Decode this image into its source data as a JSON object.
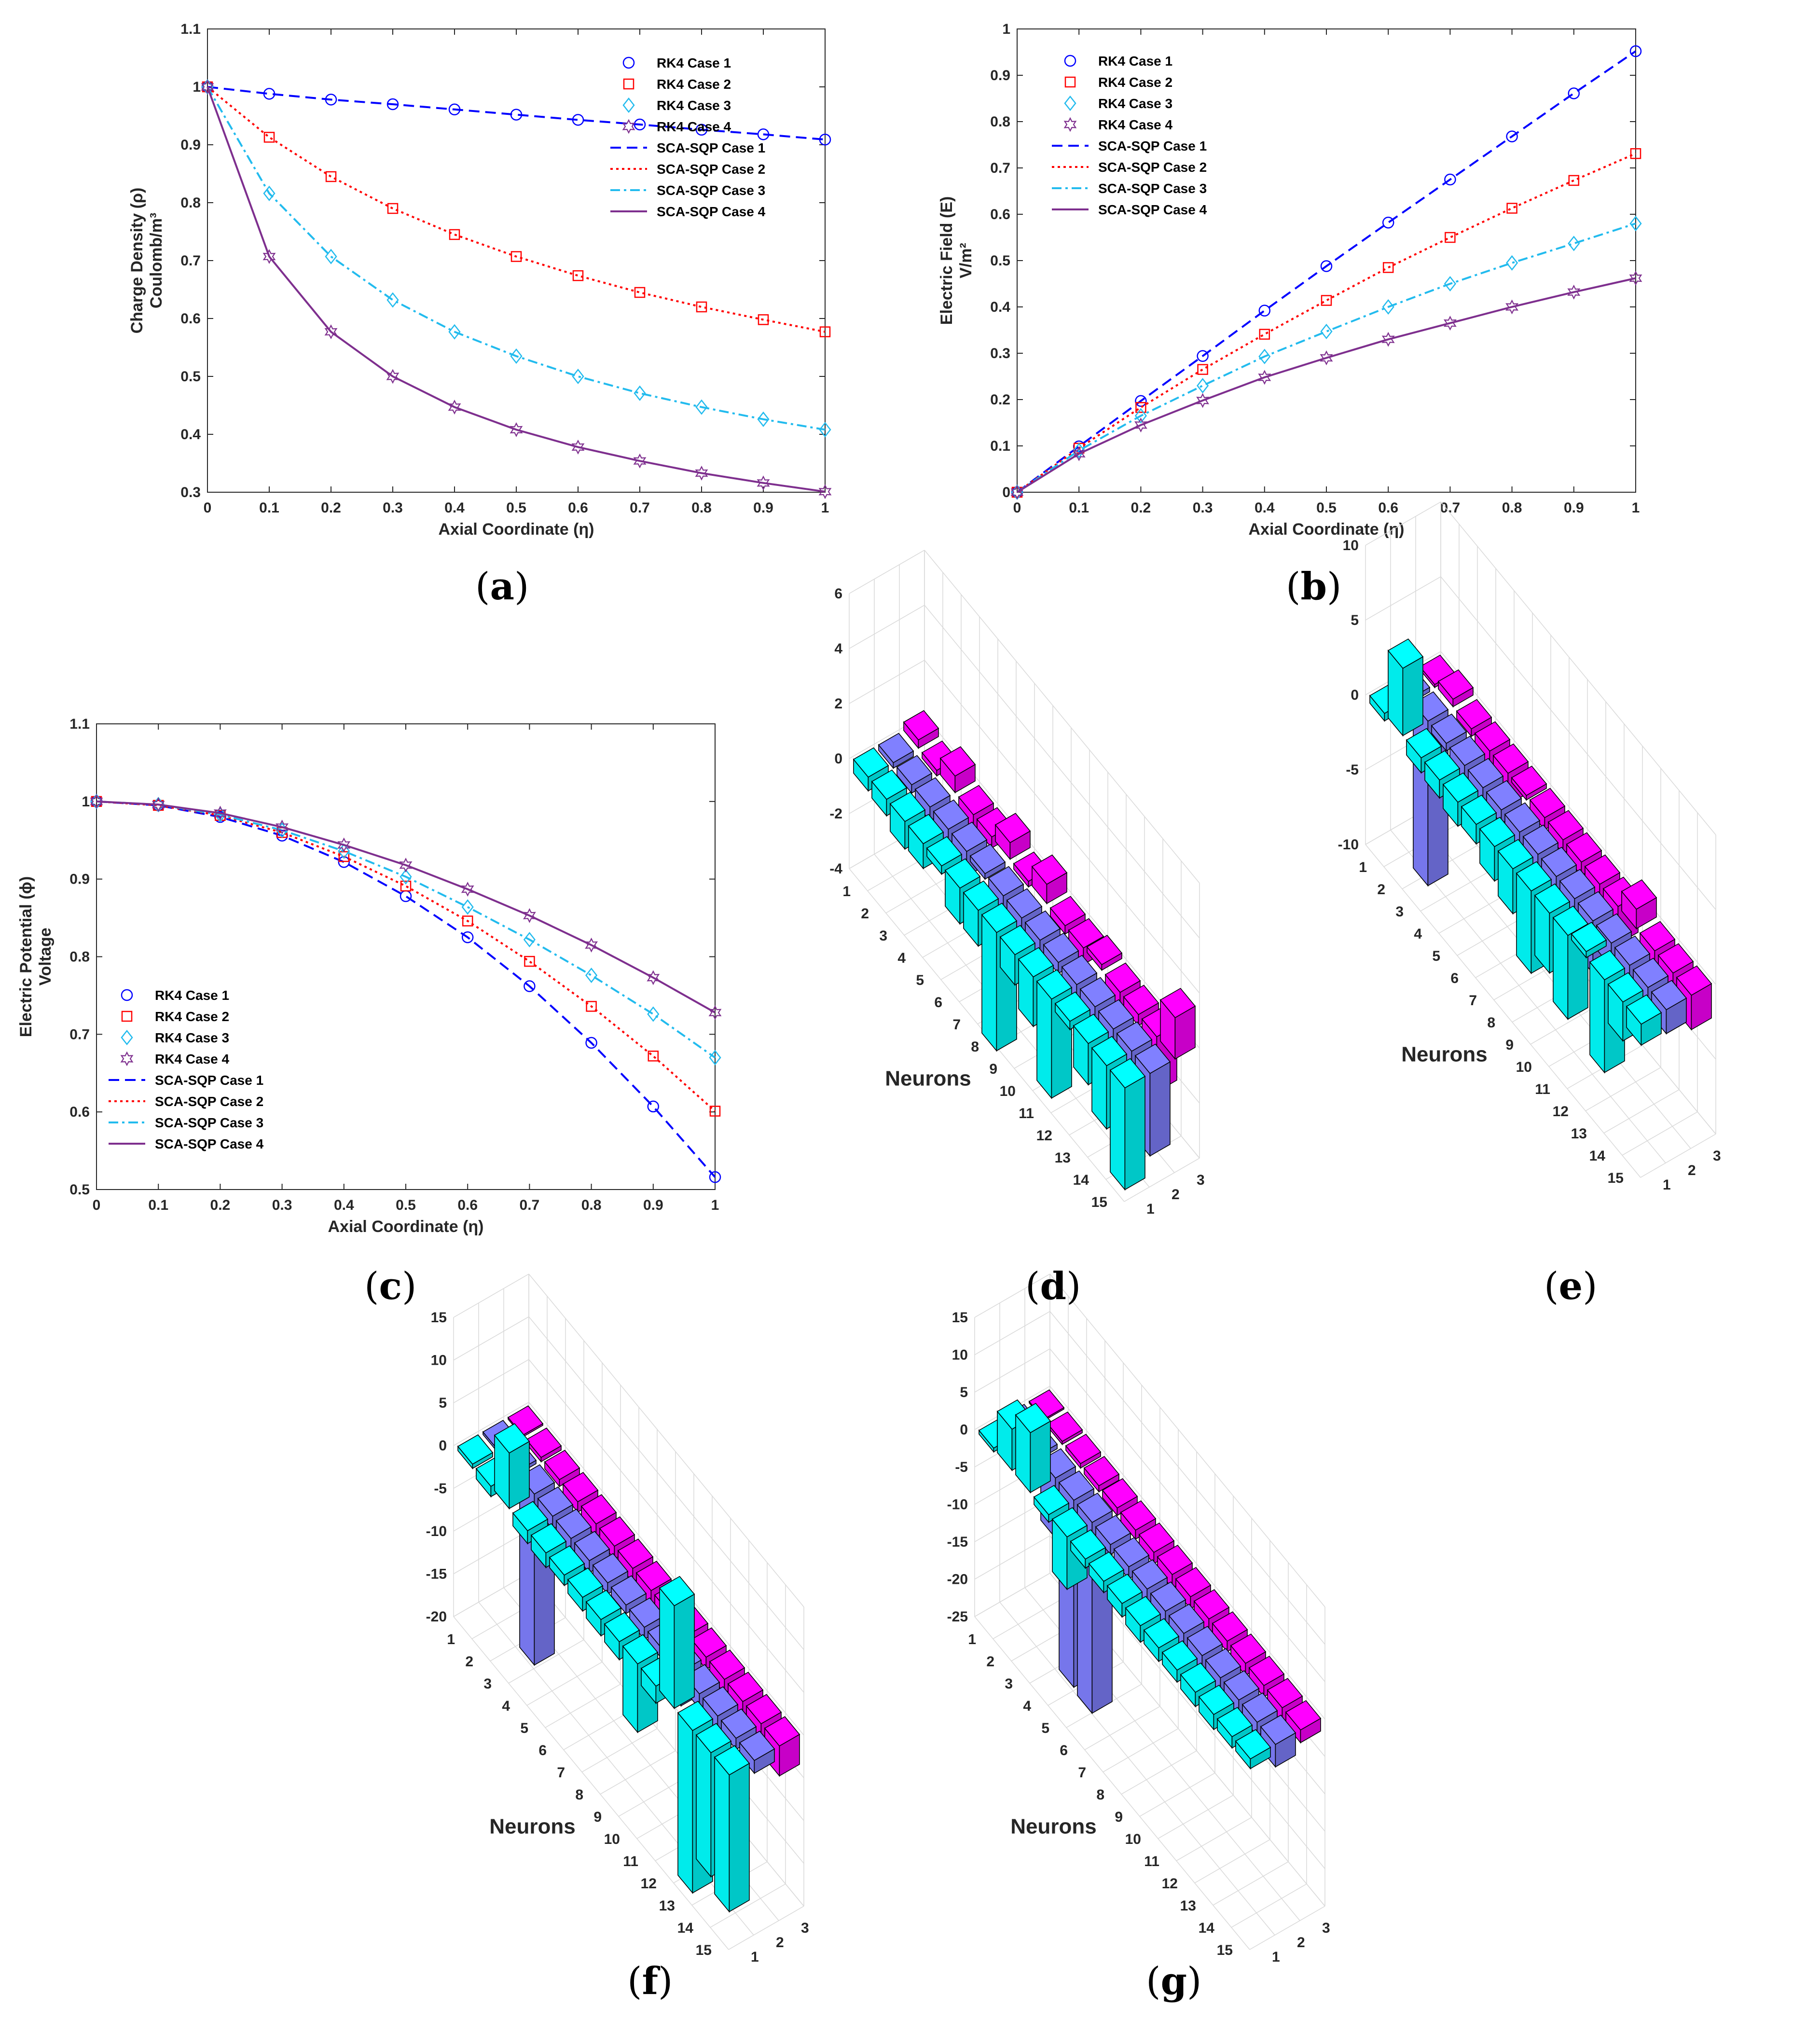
{
  "colors": {
    "case1": "#0000ff",
    "case2": "#ff0000",
    "case3": "#22bbee",
    "case4": "#7e2f8e",
    "bar_row1": "#00ffff",
    "bar_row2": "#8080ff",
    "bar_row3": "#ff00ff"
  },
  "legend_entries": [
    "RK4 Case 1",
    "RK4 Case 2",
    "RK4 Case 3",
    "RK4 Case 4",
    "SCA-SQP Case 1",
    "SCA-SQP Case 2",
    "SCA-SQP Case 3",
    "SCA-SQP Case 4"
  ],
  "captions": {
    "a": "a",
    "b": "b",
    "c": "c",
    "d": "d",
    "e": "e",
    "f": "f",
    "g": "g"
  },
  "chart_data": [
    {
      "id": "a",
      "type": "line",
      "xlabel": "Axial Coordinate (η)",
      "ylabel_line1": "Charge Density (ρ)",
      "ylabel_line2": "Coulomb/m³",
      "xlim": [
        0,
        1
      ],
      "ylim": [
        0.3,
        1.1
      ],
      "xticks": [
        0,
        0.1,
        0.2,
        0.3,
        0.4,
        0.5,
        0.6,
        0.7,
        0.8,
        0.9,
        1
      ],
      "yticks": [
        0.3,
        0.4,
        0.5,
        0.6,
        0.7,
        0.8,
        0.9,
        1,
        1.1
      ],
      "x": [
        0,
        0.1,
        0.2,
        0.3,
        0.4,
        0.5,
        0.6,
        0.7,
        0.8,
        0.9,
        1
      ],
      "legend_position": "top-right",
      "series": [
        {
          "name": "Case 1",
          "values": [
            1,
            0.988,
            0.978,
            0.97,
            0.961,
            0.952,
            0.943,
            0.935,
            0.926,
            0.918,
            0.909
          ]
        },
        {
          "name": "Case 2",
          "values": [
            1,
            0.913,
            0.845,
            0.79,
            0.745,
            0.707,
            0.674,
            0.645,
            0.62,
            0.598,
            0.577
          ]
        },
        {
          "name": "Case 3",
          "values": [
            1,
            0.816,
            0.707,
            0.632,
            0.577,
            0.535,
            0.5,
            0.471,
            0.447,
            0.426,
            0.408
          ]
        },
        {
          "name": "Case 4",
          "values": [
            1,
            0.707,
            0.577,
            0.5,
            0.447,
            0.408,
            0.378,
            0.354,
            0.333,
            0.316,
            0.301
          ]
        }
      ]
    },
    {
      "id": "b",
      "type": "line",
      "xlabel": "Axial Coordinate (η)",
      "ylabel_line1": "Electric Field (E)",
      "ylabel_line2": "V/m²",
      "xlim": [
        0,
        1
      ],
      "ylim": [
        0,
        1
      ],
      "xticks": [
        0,
        0.1,
        0.2,
        0.3,
        0.4,
        0.5,
        0.6,
        0.7,
        0.8,
        0.9,
        1
      ],
      "yticks": [
        0,
        0.1,
        0.2,
        0.3,
        0.4,
        0.5,
        0.6,
        0.7,
        0.8,
        0.9,
        1
      ],
      "x": [
        0,
        0.1,
        0.2,
        0.3,
        0.4,
        0.5,
        0.6,
        0.7,
        0.8,
        0.9,
        1
      ],
      "legend_position": "top-left",
      "series": [
        {
          "name": "Case 1",
          "values": [
            0,
            0.099,
            0.197,
            0.294,
            0.392,
            0.488,
            0.582,
            0.675,
            0.768,
            0.861,
            0.952
          ]
        },
        {
          "name": "Case 2",
          "values": [
            0,
            0.095,
            0.183,
            0.265,
            0.341,
            0.414,
            0.485,
            0.55,
            0.613,
            0.673,
            0.731
          ]
        },
        {
          "name": "Case 3",
          "values": [
            0,
            0.09,
            0.165,
            0.23,
            0.293,
            0.347,
            0.4,
            0.45,
            0.495,
            0.537,
            0.58
          ]
        },
        {
          "name": "Case 4",
          "values": [
            0,
            0.083,
            0.145,
            0.198,
            0.248,
            0.29,
            0.33,
            0.365,
            0.4,
            0.432,
            0.462
          ]
        }
      ]
    },
    {
      "id": "c",
      "type": "line",
      "xlabel": "Axial Coordinate (η)",
      "ylabel_line1": "Electric Potential (ϕ)",
      "ylabel_line2": "Voltage",
      "xlim": [
        0,
        1
      ],
      "ylim": [
        0.5,
        1.1
      ],
      "xticks": [
        0,
        0.1,
        0.2,
        0.3,
        0.4,
        0.5,
        0.6,
        0.7,
        0.8,
        0.9,
        1
      ],
      "yticks": [
        0.5,
        0.6,
        0.7,
        0.8,
        0.9,
        1,
        1.1
      ],
      "x": [
        0,
        0.1,
        0.2,
        0.3,
        0.4,
        0.5,
        0.6,
        0.7,
        0.8,
        0.9,
        1
      ],
      "legend_position": "bottom-left",
      "series": [
        {
          "name": "Case 1",
          "values": [
            1,
            0.995,
            0.98,
            0.956,
            0.922,
            0.878,
            0.825,
            0.762,
            0.689,
            0.607,
            0.516
          ]
        },
        {
          "name": "Case 2",
          "values": [
            1,
            0.995,
            0.982,
            0.96,
            0.929,
            0.891,
            0.846,
            0.794,
            0.736,
            0.672,
            0.601
          ]
        },
        {
          "name": "Case 3",
          "values": [
            1,
            0.996,
            0.983,
            0.963,
            0.936,
            0.903,
            0.864,
            0.822,
            0.776,
            0.726,
            0.67
          ]
        },
        {
          "name": "Case 4",
          "values": [
            1,
            0.996,
            0.985,
            0.967,
            0.944,
            0.918,
            0.887,
            0.853,
            0.815,
            0.773,
            0.728
          ]
        }
      ]
    },
    {
      "id": "d",
      "type": "bar3d",
      "xlabel": "Neurons",
      "neurons": [
        1,
        2,
        3,
        4,
        5,
        6,
        7,
        8,
        9,
        10,
        11,
        12,
        13,
        14,
        15
      ],
      "rows": [
        1,
        2,
        3
      ],
      "zlim": [
        -4,
        6
      ],
      "zticks": [
        -4,
        -2,
        0,
        2,
        4,
        6
      ],
      "values": [
        [
          -0.5,
          -0.6,
          -1.0,
          -0.9,
          -0.3,
          -1.3,
          -1.3,
          -4.3,
          -1.1,
          -1.8,
          -3.6,
          -0.3,
          -1.5,
          -2.3,
          -3.7
        ],
        [
          -0.2,
          -0.3,
          -0.5,
          -0.7,
          -0.9,
          -0.2,
          -0.8,
          -1.0,
          -1.2,
          -0.4,
          -1.3,
          -1.0,
          -1.5,
          -1.2,
          -3.0
        ],
        [
          0.3,
          -0.2,
          0.6,
          -0.8,
          -0.4,
          0.6,
          -0.2,
          0.7,
          -0.3,
          -0.6,
          0.2,
          -0.6,
          -0.4,
          -2.0,
          1.5
        ]
      ]
    },
    {
      "id": "e",
      "type": "bar3d",
      "xlabel": "Neurons",
      "neurons": [
        1,
        2,
        3,
        4,
        5,
        6,
        7,
        8,
        9,
        10,
        11,
        12,
        13,
        14,
        15
      ],
      "rows": [
        1,
        2,
        3
      ],
      "zlim": [
        -10,
        10
      ],
      "zticks": [
        -10,
        -5,
        0,
        5,
        10
      ],
      "values": [
        [
          -0.5,
          4.5,
          -1.0,
          -1.2,
          -1.6,
          -1.3,
          -2.3,
          -3.0,
          -5.5,
          -4.0,
          -5.6,
          0.4,
          -6.2,
          -2.6,
          -1.4
        ],
        [
          -0.3,
          -11.0,
          -0.5,
          -2.3,
          -1.7,
          -0.9,
          -1.4,
          -1.6,
          -1.7,
          -2.1,
          -3.5,
          -1.6,
          -3.6,
          -1.9,
          -1.6
        ],
        [
          -0.2,
          0.5,
          -0.5,
          -1.1,
          -2.1,
          -0.3,
          -0.8,
          -0.9,
          -0.9,
          -1.0,
          -2.5,
          1.3,
          -1.8,
          -1.7,
          -2.3
        ]
      ]
    },
    {
      "id": "f",
      "type": "bar3d",
      "xlabel": "Neurons",
      "neurons": [
        1,
        2,
        3,
        4,
        5,
        6,
        7,
        8,
        9,
        10,
        11,
        12,
        13,
        14,
        15
      ],
      "rows": [
        1,
        2,
        3
      ],
      "zlim": [
        -20,
        15
      ],
      "zticks": [
        -20,
        -15,
        -10,
        -5,
        0,
        5,
        10,
        15
      ],
      "values": [
        [
          -0.5,
          -1.2,
          6.5,
          -1.5,
          -1.7,
          -1.2,
          -1.6,
          -1.9,
          -2.1,
          -8.0,
          -2.0,
          12.0,
          -19.0,
          -14.5,
          -16.0
        ],
        [
          -0.3,
          -0.4,
          -20.0,
          -1.5,
          -4.5,
          -1.4,
          -1.3,
          -1.0,
          -1.4,
          -1.2,
          -4.0,
          -1.7,
          -1.8,
          -1.3,
          -1.5
        ],
        [
          -0.2,
          -0.5,
          -0.8,
          -1.2,
          -1.5,
          -1.5,
          -1.6,
          -2.3,
          -1.9,
          -1.7,
          -1.4,
          -1.6,
          -1.8,
          -2.2,
          -3.5
        ]
      ]
    },
    {
      "id": "g",
      "type": "bar3d",
      "xlabel": "Neurons",
      "neurons": [
        1,
        2,
        3,
        4,
        5,
        6,
        7,
        8,
        9,
        10,
        11,
        12,
        13,
        14,
        15
      ],
      "rows": [
        1,
        2,
        3
      ],
      "zlim": [
        -25,
        15
      ],
      "zticks": [
        -25,
        -20,
        -15,
        -10,
        -5,
        0,
        5,
        10,
        15
      ],
      "values": [
        [
          -0.5,
          5.5,
          8.0,
          -1.0,
          -7.0,
          -1.2,
          -1.5,
          -1.8,
          -2.2,
          -1.8,
          -1.6,
          -1.9,
          -2.0,
          -1.5,
          -1.3
        ],
        [
          -0.3,
          -0.6,
          -8.0,
          -25.0,
          -25.5,
          -1.3,
          -1.6,
          -2.3,
          -2.5,
          -2.4,
          -5.0,
          -2.0,
          -1.9,
          -1.8,
          -3.0
        ],
        [
          -0.2,
          -0.4,
          -0.6,
          -0.8,
          -1.0,
          -1.2,
          -1.5,
          -1.8,
          -1.6,
          -1.9,
          -1.4,
          -1.6,
          -1.5,
          -2.0,
          -1.7
        ]
      ]
    }
  ]
}
